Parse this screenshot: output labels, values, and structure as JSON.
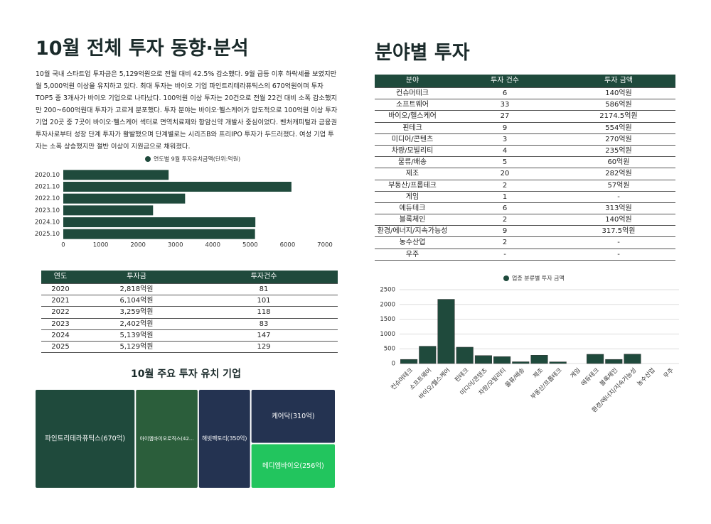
{
  "left": {
    "title": "10월 전체 투자 동향·분석",
    "paragraph": "10월 국내 스타트업 투자금은 5,129억원으로 전월 대비 42.5% 감소했다. 9월 급등 이후 하락세를 보였지만 월 5,000억원 이상을 유지하고 있다. 최대 투자는 바이오 기업 파인트리테라퓨틱스의 670억원이며 투자 TOP5 중 3개사가 바이오 기업으로 나타났다. 100억원 이상 투자는 20건으로 전월 22건 대비 소폭 감소했지만 200~600억원대 투자가 고르게 분포했다. 투자 분야는 바이오·헬스케어가 압도적으로 100억원 이상 투자 기업 20곳 중 7곳이 바이오·헬스케어 섹터로 면역치료제와 항암신약 개발사 중심이었다. 벤처캐피털과 금융권 투자사로부터 성장 단계 투자가 활발했으며 단계별로는 시리즈B와 프리IPO 투자가 두드러졌다. 여성 기업 투자는 소폭 상승했지만 절반 이상이 지원금으로 채워졌다."
  },
  "right": {
    "title": "분야별 투자"
  },
  "chart_data": [
    {
      "type": "hbar",
      "categories": [
        "2020.10",
        "2021.10",
        "2022.10",
        "2023.10",
        "2024.10",
        "2025.10"
      ],
      "series": [
        {
          "name": "연도별 9월 투자유치금액(단위:억원)",
          "color": "#1f4a3c",
          "values": [
            2818,
            6104,
            3259,
            2402,
            5139,
            5129
          ]
        }
      ],
      "xlim": [
        0,
        7000
      ],
      "xticks": [
        0,
        1000,
        2000,
        3000,
        4000,
        5000,
        6000,
        7000
      ],
      "grid": false
    },
    {
      "type": "treemap",
      "title": "10월 주요 투자 유치 기업",
      "values": [
        670,
        420,
        350,
        310,
        256
      ],
      "value_labels": [
        "파인트리테라퓨틱스(670억)",
        "아이엠바이오로직스(42...",
        "해빗팩토리(350억)",
        "케어닥(310억)",
        "메디엠바이오(256억)"
      ],
      "colors": [
        "#1f4a3c",
        "#2b5e3b",
        "#243351",
        "#243351",
        "#22c55e"
      ]
    },
    {
      "type": "bar",
      "categories": [
        "컨슈머테크",
        "소프트웨어",
        "바이오/헬스케어",
        "핀테크",
        "미디어/콘텐츠",
        "차량/모빌리티",
        "물류/배송",
        "제조",
        "부동산/프롭테크",
        "게임",
        "에듀테크",
        "블록체인",
        "환경/에너지/지속가능성",
        "농수산업",
        "우주"
      ],
      "series": [
        {
          "name": "업종 분류별 투자 금액",
          "color": "#1f4a3c",
          "values": [
            140,
            586,
            2174.5,
            554,
            270,
            235,
            60,
            282,
            57,
            null,
            313,
            140,
            317.5,
            null,
            null
          ]
        }
      ],
      "ylim": [
        0,
        2500
      ],
      "yticks": [
        0,
        500,
        1000,
        1500,
        2000,
        2500
      ],
      "grid": true
    }
  ],
  "table_years": {
    "header": [
      "연도",
      "투자금",
      "투자건수"
    ],
    "rows": [
      [
        "2020",
        "2,818억원",
        "81"
      ],
      [
        "2021",
        "6,104억원",
        "101"
      ],
      [
        "2022",
        "3,259억원",
        "118"
      ],
      [
        "2023",
        "2,402억원",
        "83"
      ],
      [
        "2024",
        "5,139억원",
        "147"
      ],
      [
        "2025",
        "5,129억원",
        "129"
      ]
    ]
  },
  "table_sectors": {
    "header": [
      "분야",
      "투자 건수",
      "투자 금액"
    ],
    "rows": [
      [
        "컨슈머테크",
        "6",
        "140억원"
      ],
      [
        "소프트웨어",
        "33",
        "586억원"
      ],
      [
        "바이오/헬스케어",
        "27",
        "2174.5억원"
      ],
      [
        "핀테크",
        "9",
        "554억원"
      ],
      [
        "미디어/콘텐츠",
        "3",
        "270억원"
      ],
      [
        "차량/모빌리티",
        "4",
        "235억원"
      ],
      [
        "물류/배송",
        "5",
        "60억원"
      ],
      [
        "제조",
        "20",
        "282억원"
      ],
      [
        "부동산/프롭테크",
        "2",
        "57억원"
      ],
      [
        "게임",
        "1",
        "-"
      ],
      [
        "에듀테크",
        "6",
        "313억원"
      ],
      [
        "블록체인",
        "2",
        "140억원"
      ],
      [
        "환경/에너지/지속가능성",
        "9",
        "317.5억원"
      ],
      [
        "농수산업",
        "2",
        "-"
      ],
      [
        "우주",
        "-",
        "-"
      ]
    ]
  }
}
